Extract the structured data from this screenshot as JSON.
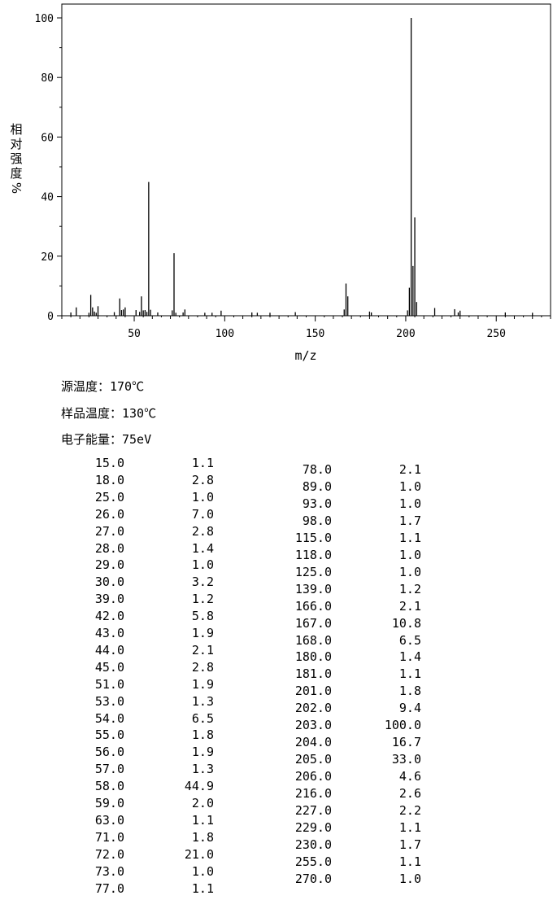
{
  "chart_data": {
    "type": "bar",
    "ylabel": "相对强度%",
    "xlabel": "m/z",
    "xlim": [
      10,
      280
    ],
    "ylim": [
      0,
      100
    ],
    "x_ticks": [
      "50",
      "100",
      "150",
      "200",
      "250"
    ],
    "y_ticks": [
      "0",
      "20",
      "40",
      "60",
      "80",
      "100"
    ],
    "grid": false,
    "bar_color": "#000000",
    "peaks": [
      [
        15,
        1.1
      ],
      [
        18,
        2.8
      ],
      [
        25,
        1.0
      ],
      [
        26,
        7.0
      ],
      [
        27,
        2.8
      ],
      [
        28,
        1.4
      ],
      [
        29,
        1.0
      ],
      [
        30,
        3.2
      ],
      [
        39,
        1.2
      ],
      [
        42,
        5.8
      ],
      [
        43,
        1.9
      ],
      [
        44,
        2.1
      ],
      [
        45,
        2.8
      ],
      [
        51,
        1.9
      ],
      [
        53,
        1.3
      ],
      [
        54,
        6.5
      ],
      [
        55,
        1.8
      ],
      [
        56,
        1.9
      ],
      [
        57,
        1.3
      ],
      [
        58,
        44.9
      ],
      [
        59,
        2.0
      ],
      [
        63,
        1.1
      ],
      [
        71,
        1.8
      ],
      [
        72,
        21.0
      ],
      [
        73,
        1.0
      ],
      [
        77,
        1.1
      ],
      [
        78,
        2.1
      ],
      [
        89,
        1.0
      ],
      [
        93,
        1.0
      ],
      [
        98,
        1.7
      ],
      [
        115,
        1.1
      ],
      [
        118,
        1.0
      ],
      [
        125,
        1.0
      ],
      [
        139,
        1.2
      ],
      [
        166,
        2.1
      ],
      [
        167,
        10.8
      ],
      [
        168,
        6.5
      ],
      [
        180,
        1.4
      ],
      [
        181,
        1.1
      ],
      [
        201,
        1.8
      ],
      [
        202,
        9.4
      ],
      [
        203,
        100.0
      ],
      [
        204,
        16.7
      ],
      [
        205,
        33.0
      ],
      [
        206,
        4.6
      ],
      [
        216,
        2.6
      ],
      [
        227,
        2.2
      ],
      [
        229,
        1.1
      ],
      [
        230,
        1.7
      ],
      [
        255,
        1.1
      ],
      [
        270,
        1.0
      ]
    ]
  },
  "conditions": {
    "source_temp": "源温度：170℃",
    "sample_temp": "样品温度：130℃",
    "electron_energy": "电子能量：75eV"
  },
  "table_left": [
    [
      "15.0",
      "1.1"
    ],
    [
      "18.0",
      "2.8"
    ],
    [
      "25.0",
      "1.0"
    ],
    [
      "26.0",
      "7.0"
    ],
    [
      "27.0",
      "2.8"
    ],
    [
      "28.0",
      "1.4"
    ],
    [
      "29.0",
      "1.0"
    ],
    [
      "30.0",
      "3.2"
    ],
    [
      "39.0",
      "1.2"
    ],
    [
      "42.0",
      "5.8"
    ],
    [
      "43.0",
      "1.9"
    ],
    [
      "44.0",
      "2.1"
    ],
    [
      "45.0",
      "2.8"
    ],
    [
      "51.0",
      "1.9"
    ],
    [
      "53.0",
      "1.3"
    ],
    [
      "54.0",
      "6.5"
    ],
    [
      "55.0",
      "1.8"
    ],
    [
      "56.0",
      "1.9"
    ],
    [
      "57.0",
      "1.3"
    ],
    [
      "58.0",
      "44.9"
    ],
    [
      "59.0",
      "2.0"
    ],
    [
      "63.0",
      "1.1"
    ],
    [
      "71.0",
      "1.8"
    ],
    [
      "72.0",
      "21.0"
    ],
    [
      "73.0",
      "1.0"
    ],
    [
      "77.0",
      "1.1"
    ]
  ],
  "table_right": [
    [
      "78.0",
      "2.1"
    ],
    [
      "89.0",
      "1.0"
    ],
    [
      "93.0",
      "1.0"
    ],
    [
      "98.0",
      "1.7"
    ],
    [
      "115.0",
      "1.1"
    ],
    [
      "118.0",
      "1.0"
    ],
    [
      "125.0",
      "1.0"
    ],
    [
      "139.0",
      "1.2"
    ],
    [
      "166.0",
      "2.1"
    ],
    [
      "167.0",
      "10.8"
    ],
    [
      "168.0",
      "6.5"
    ],
    [
      "180.0",
      "1.4"
    ],
    [
      "181.0",
      "1.1"
    ],
    [
      "201.0",
      "1.8"
    ],
    [
      "202.0",
      "9.4"
    ],
    [
      "203.0",
      "100.0"
    ],
    [
      "204.0",
      "16.7"
    ],
    [
      "205.0",
      "33.0"
    ],
    [
      "206.0",
      "4.6"
    ],
    [
      "216.0",
      "2.6"
    ],
    [
      "227.0",
      "2.2"
    ],
    [
      "229.0",
      "1.1"
    ],
    [
      "230.0",
      "1.7"
    ],
    [
      "255.0",
      "1.1"
    ],
    [
      "270.0",
      "1.0"
    ]
  ]
}
